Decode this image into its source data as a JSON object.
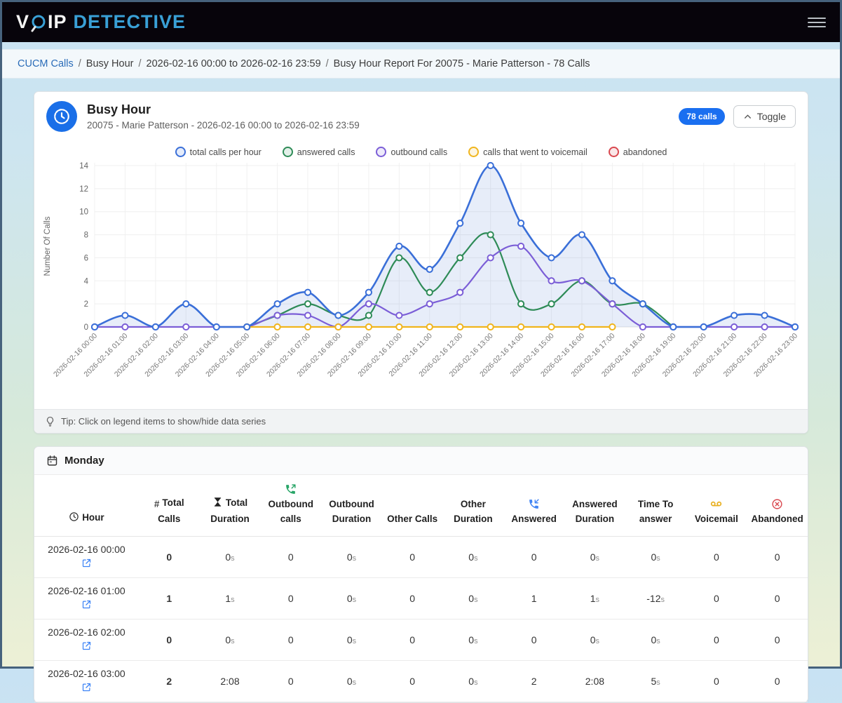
{
  "navbar": {
    "brand_part1": "V",
    "brand_part2": "IP",
    "brand_accent": "DETECTIVE"
  },
  "breadcrumb": {
    "separator": "/",
    "items": [
      {
        "label": "CUCM Calls",
        "link": true
      },
      {
        "label": "Busy Hour",
        "link": false
      },
      {
        "label": "2026-02-16 00:00 to 2026-02-16 23:59",
        "link": false
      },
      {
        "label": "Busy Hour Report For 20075 - Marie Patterson - 78 Calls",
        "link": false
      }
    ]
  },
  "report_card": {
    "title": "Busy Hour",
    "subtitle": "20075 - Marie Patterson - 2026-02-16 00:00 to 2026-02-16 23:59",
    "badge": "78 calls",
    "toggle_label": "Toggle",
    "tip": "Tip: Click on legend items to show/hide data series"
  },
  "chart_data": {
    "type": "line",
    "title": "",
    "xlabel": "",
    "ylabel": "Number Of Calls",
    "ylim": [
      0,
      14
    ],
    "yticks": [
      0,
      2,
      4,
      6,
      8,
      10,
      12,
      14
    ],
    "grid": true,
    "legend_position": "top",
    "x": [
      "2026-02-16 00:00",
      "2026-02-16 01:00",
      "2026-02-16 02:00",
      "2026-02-16 03:00",
      "2026-02-16 04:00",
      "2026-02-16 05:00",
      "2026-02-16 06:00",
      "2026-02-16 07:00",
      "2026-02-16 08:00",
      "2026-02-16 09:00",
      "2026-02-16 10:00",
      "2026-02-16 11:00",
      "2026-02-16 12:00",
      "2026-02-16 13:00",
      "2026-02-16 14:00",
      "2026-02-16 15:00",
      "2026-02-16 16:00",
      "2026-02-16 17:00",
      "2026-02-16 18:00",
      "2026-02-16 19:00",
      "2026-02-16 20:00",
      "2026-02-16 21:00",
      "2026-02-16 22:00",
      "2026-02-16 23:00"
    ],
    "series": [
      {
        "name": "total calls per hour",
        "color": "#3a6fd8",
        "fill": true,
        "values": [
          0,
          1,
          0,
          2,
          0,
          0,
          2,
          3,
          1,
          3,
          7,
          5,
          9,
          14,
          9,
          6,
          8,
          4,
          2,
          0,
          0,
          1,
          1,
          0
        ]
      },
      {
        "name": "answered calls",
        "color": "#2e8b57",
        "fill": false,
        "values": [
          null,
          null,
          null,
          null,
          null,
          0,
          1,
          2,
          1,
          1,
          6,
          3,
          6,
          8,
          2,
          2,
          4,
          2,
          2,
          0,
          null,
          null,
          null,
          null
        ]
      },
      {
        "name": "outbound calls",
        "color": "#7b5ed7",
        "fill": false,
        "values": [
          0,
          0,
          0,
          0,
          0,
          0,
          1,
          1,
          0,
          2,
          1,
          2,
          3,
          6,
          7,
          4,
          4,
          2,
          0,
          0,
          0,
          0,
          0,
          0
        ]
      },
      {
        "name": "calls that went to voicemail",
        "color": "#f0b51d",
        "fill": false,
        "values": [
          null,
          null,
          null,
          null,
          null,
          0,
          0,
          0,
          0,
          0,
          0,
          0,
          0,
          0,
          0,
          0,
          0,
          0,
          null,
          null,
          null,
          null,
          null,
          null
        ]
      },
      {
        "name": "abandoned",
        "color": "#d9484f",
        "fill": false,
        "values": [
          null,
          null,
          null,
          null,
          null,
          null,
          null,
          null,
          null,
          null,
          null,
          null,
          null,
          null,
          null,
          null,
          null,
          null,
          null,
          null,
          null,
          null,
          null,
          null
        ]
      }
    ]
  },
  "table": {
    "day_label": "Monday",
    "columns": [
      {
        "label": "Hour",
        "icon": "clock",
        "icon_pos": "inline"
      },
      {
        "label": "Total Calls",
        "icon": "hash",
        "icon_pos": "inline",
        "bold": true
      },
      {
        "label": "Total Duration",
        "icon": "hourglass",
        "icon_pos": "inline"
      },
      {
        "label": "Outbound calls",
        "icon": "phone-out",
        "icon_pos": "above"
      },
      {
        "label": "Outbound Duration"
      },
      {
        "label": "Other Calls"
      },
      {
        "label": "Other Duration"
      },
      {
        "label": "Answered",
        "icon": "phone-in",
        "icon_pos": "above"
      },
      {
        "label": "Answered Duration"
      },
      {
        "label": "Time To answer"
      },
      {
        "label": "Voicemail",
        "icon": "voicemail",
        "icon_pos": "above"
      },
      {
        "label": "Abandoned",
        "icon": "abandoned",
        "icon_pos": "above"
      }
    ],
    "rows": [
      {
        "hour": "2026-02-16 00:00",
        "values": [
          "0",
          "0s",
          "0",
          "0s",
          "0",
          "0s",
          "0",
          "0s",
          "0s",
          "0",
          "0"
        ]
      },
      {
        "hour": "2026-02-16 01:00",
        "values": [
          "1",
          "1s",
          "0",
          "0s",
          "0",
          "0s",
          "1",
          "1s",
          "-12s",
          "0",
          "0"
        ]
      },
      {
        "hour": "2026-02-16 02:00",
        "values": [
          "0",
          "0s",
          "0",
          "0s",
          "0",
          "0s",
          "0",
          "0s",
          "0s",
          "0",
          "0"
        ]
      },
      {
        "hour": "2026-02-16 03:00",
        "values": [
          "2",
          "2:08",
          "0",
          "0s",
          "0",
          "0s",
          "2",
          "2:08",
          "5s",
          "0",
          "0"
        ]
      }
    ]
  }
}
